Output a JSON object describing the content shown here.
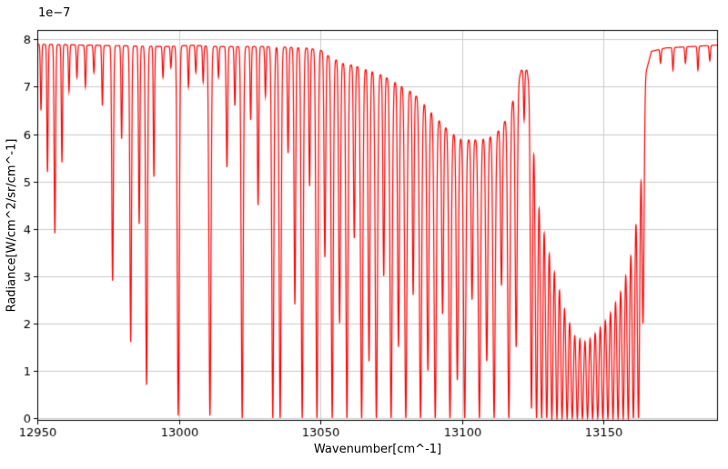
{
  "figure": {
    "background": "#ffffff"
  },
  "chart_data": {
    "type": "line",
    "title": "",
    "xlabel": "Wavenumber[cm^-1]",
    "ylabel": "Radiance[W/cm^2/sr/cm^-1]",
    "offset_label": "1e−7",
    "y_scale_factor": "1e-7",
    "line_color": "#ff0000",
    "grid": true,
    "grid_color": "#cccccc",
    "spine_color": "#000000",
    "xlim": [
      12950,
      13190.5
    ],
    "ylim": [
      -0.06,
      8.2
    ],
    "xticks": [
      12950,
      13000,
      13050,
      13100,
      13150
    ],
    "yticks": [
      0,
      1,
      2,
      3,
      4,
      5,
      6,
      7,
      8
    ],
    "continuum_level": 7.9,
    "envelope": [
      [
        12950,
        7.9
      ],
      [
        12995,
        7.85
      ],
      [
        13005,
        7.88
      ],
      [
        13013,
        7.85
      ],
      [
        13032,
        7.85
      ],
      [
        13045,
        7.82
      ],
      [
        13050,
        7.78
      ],
      [
        13053,
        7.65
      ],
      [
        13058,
        7.5
      ],
      [
        13064,
        7.42
      ],
      [
        13070,
        7.3
      ],
      [
        13076,
        7.12
      ],
      [
        13082,
        6.9
      ],
      [
        13086,
        6.7
      ],
      [
        13090,
        6.42
      ],
      [
        13095,
        6.1
      ],
      [
        13100,
        5.9
      ],
      [
        13104,
        5.88
      ],
      [
        13108,
        5.92
      ],
      [
        13112,
        6.0
      ],
      [
        13116,
        6.35
      ],
      [
        13119,
        6.9
      ],
      [
        13121,
        7.35
      ],
      [
        13123,
        7.35
      ],
      [
        13125,
        6.6
      ],
      [
        13128,
        5.2
      ],
      [
        13131,
        4.3
      ],
      [
        13134,
        3.5
      ],
      [
        13137,
        2.7
      ],
      [
        13140,
        2.15
      ],
      [
        13144,
        2.0
      ],
      [
        13148,
        2.3
      ],
      [
        13152,
        2.7
      ],
      [
        13156,
        3.3
      ],
      [
        13159,
        4.0
      ],
      [
        13161,
        4.8
      ],
      [
        13163,
        6.0
      ],
      [
        13165,
        7.3
      ],
      [
        13167,
        7.75
      ],
      [
        13172,
        7.82
      ],
      [
        13190,
        7.88
      ]
    ],
    "absorption_lines": [
      {
        "c": 12951.3,
        "f": 6.5,
        "w": 0.3
      },
      {
        "c": 12953.6,
        "f": 5.2,
        "w": 0.3
      },
      {
        "c": 12956.2,
        "f": 3.9,
        "w": 0.35
      },
      {
        "c": 12958.7,
        "f": 5.4,
        "w": 0.3
      },
      {
        "c": 12961.2,
        "f": 6.9,
        "w": 0.3
      },
      {
        "c": 12964.0,
        "f": 7.2,
        "w": 0.3
      },
      {
        "c": 12967.0,
        "f": 7.0,
        "w": 0.3
      },
      {
        "c": 12970.0,
        "f": 7.3,
        "w": 0.3
      },
      {
        "c": 12973.0,
        "f": 6.6,
        "w": 0.3
      },
      {
        "c": 12976.6,
        "f": 2.9,
        "w": 0.4
      },
      {
        "c": 12979.8,
        "f": 5.9,
        "w": 0.3
      },
      {
        "c": 12983.0,
        "f": 1.6,
        "w": 0.4
      },
      {
        "c": 12986.0,
        "f": 4.1,
        "w": 0.35
      },
      {
        "c": 12988.6,
        "f": 0.7,
        "w": 0.45
      },
      {
        "c": 12991.2,
        "f": 5.1,
        "w": 0.3
      },
      {
        "c": 12994.4,
        "f": 7.2,
        "w": 0.3
      },
      {
        "c": 12997.2,
        "f": 7.4,
        "w": 0.3
      },
      {
        "c": 12999.8,
        "f": 0.05,
        "w": 0.5
      },
      {
        "c": 13003.4,
        "f": 7.0,
        "w": 0.3
      },
      {
        "c": 13006.0,
        "f": 7.3,
        "w": 0.3
      },
      {
        "c": 13008.6,
        "f": 7.1,
        "w": 0.3
      },
      {
        "c": 13011.0,
        "f": 0.05,
        "w": 0.5
      },
      {
        "c": 13014.0,
        "f": 7.2,
        "w": 0.3
      },
      {
        "c": 13017.0,
        "f": 5.3,
        "w": 0.35
      },
      {
        "c": 13019.8,
        "f": 6.6,
        "w": 0.3
      },
      {
        "c": 13022.4,
        "f": 0.0,
        "w": 0.5
      },
      {
        "c": 13025.4,
        "f": 6.3,
        "w": 0.3
      },
      {
        "c": 13028.0,
        "f": 4.5,
        "w": 0.35
      },
      {
        "c": 13030.6,
        "f": 6.8,
        "w": 0.3
      },
      {
        "c": 13033.2,
        "f": 0.0,
        "w": 0.5
      },
      {
        "c": 13035.8,
        "f": 0.0,
        "w": 0.5
      },
      {
        "c": 13038.6,
        "f": 5.6,
        "w": 0.35
      },
      {
        "c": 13041.0,
        "f": 2.4,
        "w": 0.4
      },
      {
        "c": 13043.6,
        "f": 0.0,
        "w": 0.5
      },
      {
        "c": 13046.2,
        "f": 4.9,
        "w": 0.35
      },
      {
        "c": 13048.8,
        "f": 0.0,
        "w": 0.5
      },
      {
        "c": 13051.6,
        "f": 3.4,
        "w": 0.4
      },
      {
        "c": 13054.2,
        "f": 0.0,
        "w": 0.5
      },
      {
        "c": 13056.8,
        "f": 2.0,
        "w": 0.45
      },
      {
        "c": 13059.4,
        "f": 0.0,
        "w": 0.5
      },
      {
        "c": 13062.0,
        "f": 3.8,
        "w": 0.4
      },
      {
        "c": 13064.6,
        "f": 0.0,
        "w": 0.55
      },
      {
        "c": 13067.2,
        "f": 1.2,
        "w": 0.45
      },
      {
        "c": 13069.8,
        "f": 0.0,
        "w": 0.55
      },
      {
        "c": 13072.4,
        "f": 3.0,
        "w": 0.4
      },
      {
        "c": 13075.0,
        "f": 0.0,
        "w": 0.55
      },
      {
        "c": 13077.6,
        "f": 1.5,
        "w": 0.45
      },
      {
        "c": 13080.2,
        "f": 0.0,
        "w": 0.55
      },
      {
        "c": 13082.8,
        "f": 2.6,
        "w": 0.4
      },
      {
        "c": 13085.4,
        "f": 0.0,
        "w": 0.55
      },
      {
        "c": 13088.0,
        "f": 1.0,
        "w": 0.5
      },
      {
        "c": 13090.6,
        "f": 0.0,
        "w": 0.55
      },
      {
        "c": 13093.2,
        "f": 2.2,
        "w": 0.45
      },
      {
        "c": 13095.8,
        "f": 0.0,
        "w": 0.55
      },
      {
        "c": 13098.4,
        "f": 0.8,
        "w": 0.5
      },
      {
        "c": 13101.0,
        "f": 0.0,
        "w": 0.55
      },
      {
        "c": 13103.6,
        "f": 2.5,
        "w": 0.45
      },
      {
        "c": 13106.2,
        "f": 0.0,
        "w": 0.55
      },
      {
        "c": 13108.8,
        "f": 1.2,
        "w": 0.5
      },
      {
        "c": 13111.4,
        "f": 0.0,
        "w": 0.55
      },
      {
        "c": 13114.0,
        "f": 2.8,
        "w": 0.45
      },
      {
        "c": 13116.6,
        "f": 0.0,
        "w": 0.55
      },
      {
        "c": 13119.2,
        "f": 1.5,
        "w": 0.5
      },
      {
        "c": 13122.0,
        "f": 6.3,
        "w": 0.3
      },
      {
        "c": 13124.6,
        "f": 0.2,
        "w": 0.5
      },
      {
        "c": 13126.4,
        "f": 0.0,
        "w": 0.6
      },
      {
        "c": 13128.2,
        "f": 0.0,
        "w": 0.6
      },
      {
        "c": 13130.0,
        "f": 0.0,
        "w": 0.6
      },
      {
        "c": 13131.8,
        "f": 0.0,
        "w": 0.6
      },
      {
        "c": 13133.6,
        "f": 0.0,
        "w": 0.6
      },
      {
        "c": 13135.4,
        "f": 0.0,
        "w": 0.6
      },
      {
        "c": 13137.2,
        "f": 0.0,
        "w": 0.6
      },
      {
        "c": 13139.0,
        "f": 0.0,
        "w": 0.6
      },
      {
        "c": 13140.8,
        "f": 0.0,
        "w": 0.6
      },
      {
        "c": 13142.6,
        "f": 0.0,
        "w": 0.6
      },
      {
        "c": 13144.4,
        "f": 0.0,
        "w": 0.6
      },
      {
        "c": 13146.2,
        "f": 0.0,
        "w": 0.6
      },
      {
        "c": 13148.0,
        "f": 0.0,
        "w": 0.6
      },
      {
        "c": 13149.8,
        "f": 0.0,
        "w": 0.6
      },
      {
        "c": 13151.6,
        "f": 0.0,
        "w": 0.6
      },
      {
        "c": 13153.4,
        "f": 0.0,
        "w": 0.6
      },
      {
        "c": 13155.2,
        "f": 0.0,
        "w": 0.6
      },
      {
        "c": 13157.0,
        "f": 0.0,
        "w": 0.6
      },
      {
        "c": 13158.8,
        "f": 0.0,
        "w": 0.6
      },
      {
        "c": 13160.6,
        "f": 0.0,
        "w": 0.6
      },
      {
        "c": 13162.4,
        "f": 0.0,
        "w": 0.6
      },
      {
        "c": 13164.0,
        "f": 2.0,
        "w": 0.5
      },
      {
        "c": 13170.2,
        "f": 7.5,
        "w": 0.3
      },
      {
        "c": 13174.6,
        "f": 7.35,
        "w": 0.3
      },
      {
        "c": 13179.0,
        "f": 7.5,
        "w": 0.3
      },
      {
        "c": 13183.4,
        "f": 7.35,
        "w": 0.3
      },
      {
        "c": 13187.6,
        "f": 7.55,
        "w": 0.3
      }
    ]
  }
}
